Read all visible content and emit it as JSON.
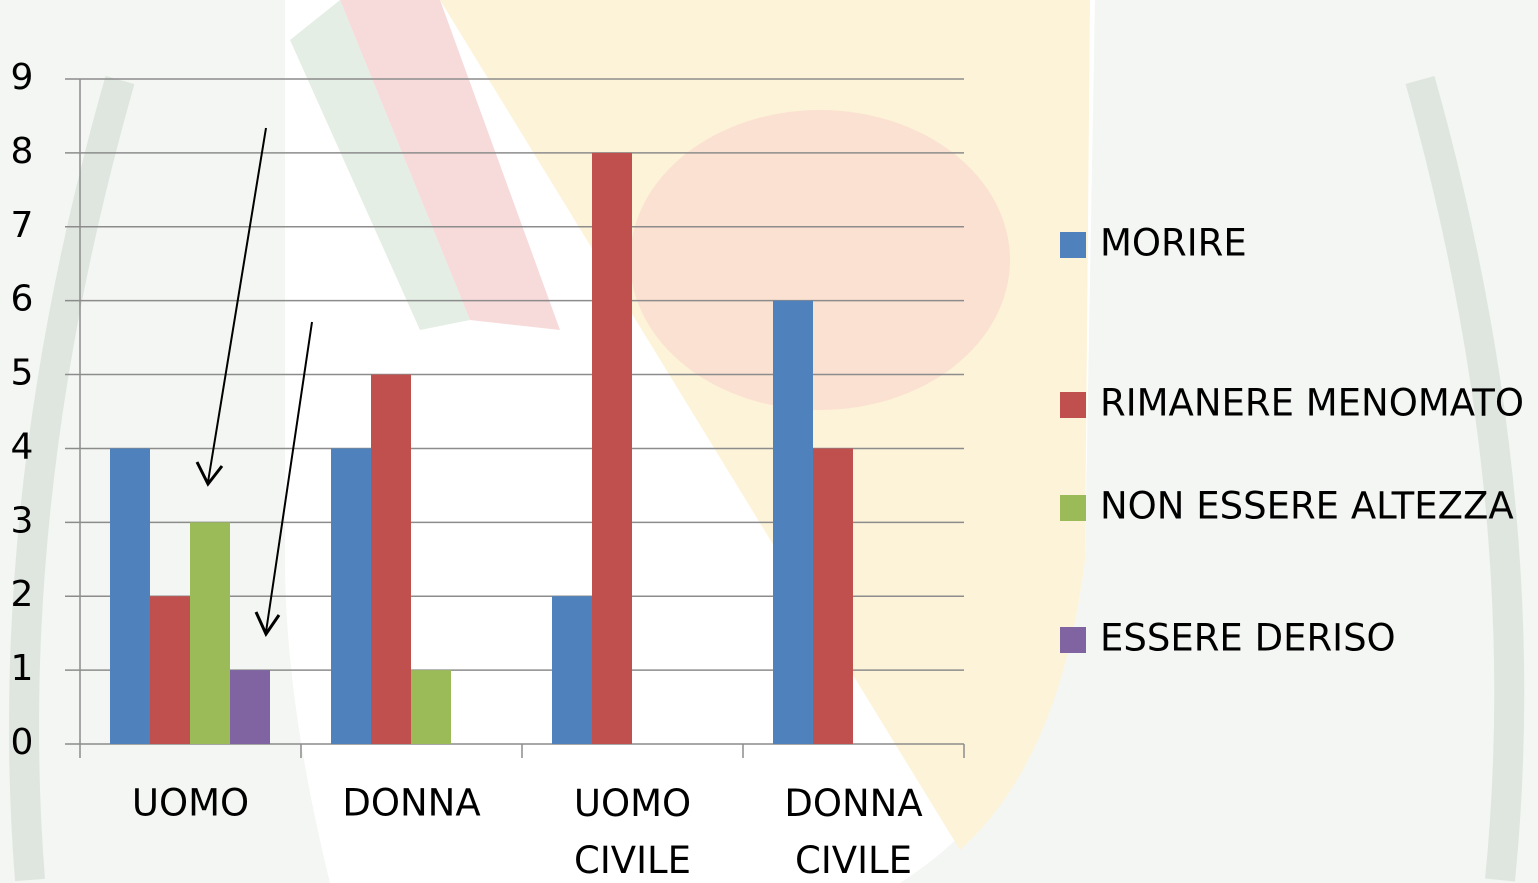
{
  "chart_data": {
    "type": "bar",
    "categories": [
      "UOMO",
      "DONNA",
      "UOMO CIVILE",
      "DONNA CIVILE"
    ],
    "series": [
      {
        "name": "MORIRE",
        "color": "#4f81bd",
        "values": [
          4,
          4,
          2,
          6
        ]
      },
      {
        "name": "RIMANERE MENOMATO",
        "color": "#c0504d",
        "values": [
          2,
          5,
          8,
          4
        ]
      },
      {
        "name": "NON ESSERE ALTEZZA",
        "color": "#9bbb59",
        "values": [
          3,
          1,
          0,
          0
        ]
      },
      {
        "name": "ESSERE DERISO",
        "color": "#8064a2",
        "values": [
          1,
          0,
          0,
          0
        ]
      }
    ],
    "ylim": [
      0,
      9
    ],
    "yticks": [
      0,
      1,
      2,
      3,
      4,
      5,
      6,
      7,
      8,
      9
    ],
    "grid": true,
    "legend": "right"
  }
}
